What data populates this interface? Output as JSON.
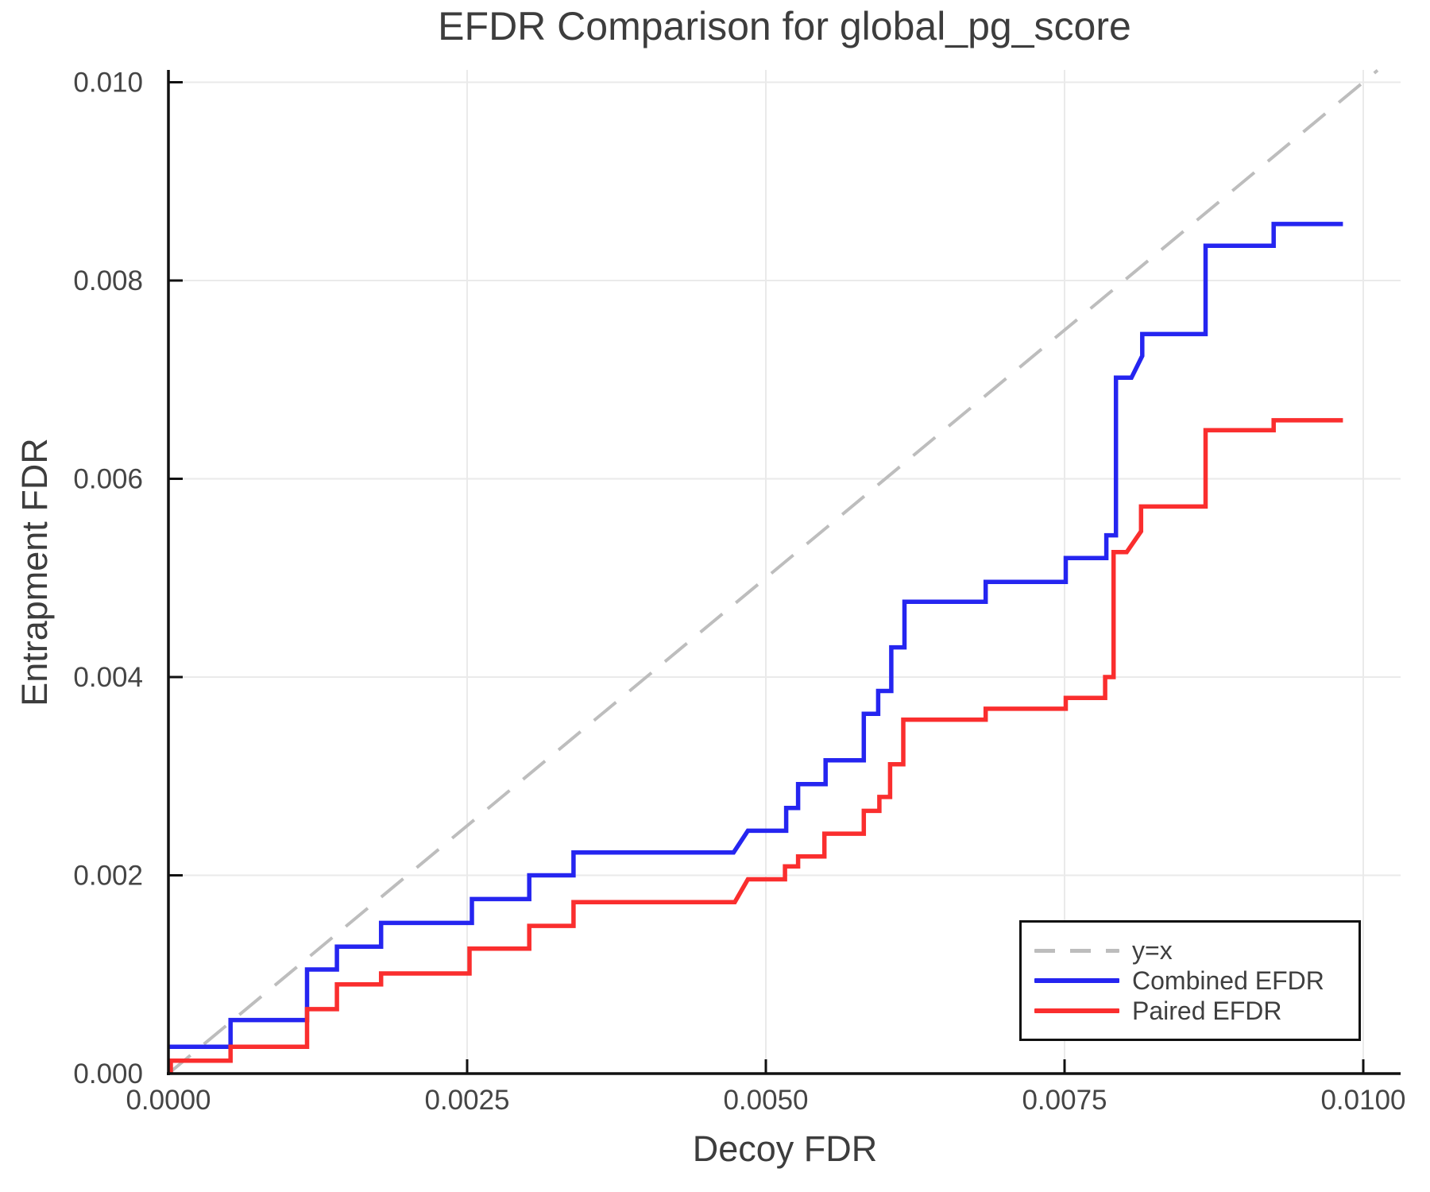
{
  "title": "EFDR Comparison for global_pg_score",
  "x_axis": {
    "label": "Decoy FDR",
    "tick_labels": [
      "0.0000",
      "0.0025",
      "0.0050",
      "0.0075",
      "0.0100"
    ],
    "tick_values": [
      0,
      0.0025,
      0.005,
      0.0075,
      0.01
    ],
    "range": [
      0,
      0.01031
    ]
  },
  "y_axis": {
    "label": "Entrapment FDR",
    "tick_labels": [
      "0.000",
      "0.002",
      "0.004",
      "0.006",
      "0.008",
      "0.010"
    ],
    "tick_values": [
      0,
      0.002,
      0.004,
      0.006,
      0.008,
      0.01
    ],
    "range": [
      0,
      0.01012
    ]
  },
  "legend": {
    "items": [
      {
        "label": "y=x",
        "color": "#bdbdbd",
        "dashed": true
      },
      {
        "label": "Combined EFDR",
        "color": "#2525f0",
        "dashed": false
      },
      {
        "label": "Paired EFDR",
        "color": "#fa2e2e",
        "dashed": false
      }
    ]
  },
  "colors": {
    "combined": "#2525f0",
    "paired": "#fa2e2e",
    "identity": "#bdbdbd",
    "grid": "#eaeaea",
    "axis": "#111111",
    "text": "#3d3d3d",
    "tick_text": "#454545"
  },
  "chart_data": {
    "type": "line",
    "title": "EFDR Comparison for global_pg_score",
    "xlabel": "Decoy FDR",
    "ylabel": "Entrapment FDR",
    "xlim": [
      0,
      0.01031
    ],
    "ylim": [
      0,
      0.01012
    ],
    "grid": true,
    "legend_position": "lower right",
    "series": [
      {
        "name": "y=x",
        "style": "dashed",
        "color": "#bdbdbd",
        "points": [
          [
            0,
            0
          ],
          [
            0.01012,
            0.01012
          ]
        ]
      },
      {
        "name": "Combined EFDR",
        "style": "solid",
        "color": "#2525f0",
        "points": [
          [
            0.0,
            0.00027
          ],
          [
            0.00052,
            0.00027
          ],
          [
            0.00052,
            0.00054
          ],
          [
            0.00116,
            0.00054
          ],
          [
            0.00116,
            0.00105
          ],
          [
            0.00141,
            0.00105
          ],
          [
            0.00141,
            0.00128
          ],
          [
            0.00178,
            0.00128
          ],
          [
            0.00178,
            0.00152
          ],
          [
            0.00254,
            0.00152
          ],
          [
            0.00254,
            0.00176
          ],
          [
            0.00302,
            0.00176
          ],
          [
            0.00302,
            0.002
          ],
          [
            0.00339,
            0.002
          ],
          [
            0.00339,
            0.00223
          ],
          [
            0.00473,
            0.00223
          ],
          [
            0.00485,
            0.00245
          ],
          [
            0.00517,
            0.00245
          ],
          [
            0.00517,
            0.00268
          ],
          [
            0.00527,
            0.00268
          ],
          [
            0.00527,
            0.00292
          ],
          [
            0.0055,
            0.00292
          ],
          [
            0.0055,
            0.00316
          ],
          [
            0.00582,
            0.00316
          ],
          [
            0.00582,
            0.00363
          ],
          [
            0.00594,
            0.00363
          ],
          [
            0.00594,
            0.00386
          ],
          [
            0.00605,
            0.00386
          ],
          [
            0.00605,
            0.0043
          ],
          [
            0.00616,
            0.0043
          ],
          [
            0.00616,
            0.00476
          ],
          [
            0.00684,
            0.00476
          ],
          [
            0.00684,
            0.00496
          ],
          [
            0.00751,
            0.00496
          ],
          [
            0.00751,
            0.0052
          ],
          [
            0.00785,
            0.0052
          ],
          [
            0.00785,
            0.00543
          ],
          [
            0.00793,
            0.00543
          ],
          [
            0.00793,
            0.00702
          ],
          [
            0.00806,
            0.00702
          ],
          [
            0.00815,
            0.00724
          ],
          [
            0.00815,
            0.00746
          ],
          [
            0.00868,
            0.00746
          ],
          [
            0.00868,
            0.00835
          ],
          [
            0.00925,
            0.00835
          ],
          [
            0.00925,
            0.00857
          ],
          [
            0.00983,
            0.00857
          ]
        ]
      },
      {
        "name": "Paired EFDR",
        "style": "solid",
        "color": "#fa2e2e",
        "points": [
          [
            2e-05,
            0.0
          ],
          [
            2e-05,
            0.00013
          ],
          [
            0.00052,
            0.00013
          ],
          [
            0.00052,
            0.00027
          ],
          [
            0.00116,
            0.00027
          ],
          [
            0.00116,
            0.00065
          ],
          [
            0.00141,
            0.00065
          ],
          [
            0.00141,
            0.0009
          ],
          [
            0.00178,
            0.0009
          ],
          [
            0.00178,
            0.00101
          ],
          [
            0.00252,
            0.00101
          ],
          [
            0.00252,
            0.00126
          ],
          [
            0.00302,
            0.00126
          ],
          [
            0.00302,
            0.00149
          ],
          [
            0.00339,
            0.00149
          ],
          [
            0.00339,
            0.00173
          ],
          [
            0.00474,
            0.00173
          ],
          [
            0.00485,
            0.00196
          ],
          [
            0.00516,
            0.00196
          ],
          [
            0.00516,
            0.00209
          ],
          [
            0.00527,
            0.00209
          ],
          [
            0.00527,
            0.00219
          ],
          [
            0.00549,
            0.00219
          ],
          [
            0.00549,
            0.00242
          ],
          [
            0.00582,
            0.00242
          ],
          [
            0.00582,
            0.00265
          ],
          [
            0.00595,
            0.00265
          ],
          [
            0.00595,
            0.00279
          ],
          [
            0.00604,
            0.00279
          ],
          [
            0.00604,
            0.00312
          ],
          [
            0.00615,
            0.00312
          ],
          [
            0.00615,
            0.00357
          ],
          [
            0.00684,
            0.00357
          ],
          [
            0.00684,
            0.00368
          ],
          [
            0.00751,
            0.00368
          ],
          [
            0.00751,
            0.00379
          ],
          [
            0.00784,
            0.00379
          ],
          [
            0.00784,
            0.004
          ],
          [
            0.00791,
            0.004
          ],
          [
            0.00791,
            0.00526
          ],
          [
            0.00802,
            0.00526
          ],
          [
            0.00814,
            0.00547
          ],
          [
            0.00814,
            0.00572
          ],
          [
            0.00868,
            0.00572
          ],
          [
            0.00868,
            0.00649
          ],
          [
            0.00925,
            0.00649
          ],
          [
            0.00925,
            0.00659
          ],
          [
            0.00983,
            0.00659
          ]
        ]
      }
    ]
  }
}
